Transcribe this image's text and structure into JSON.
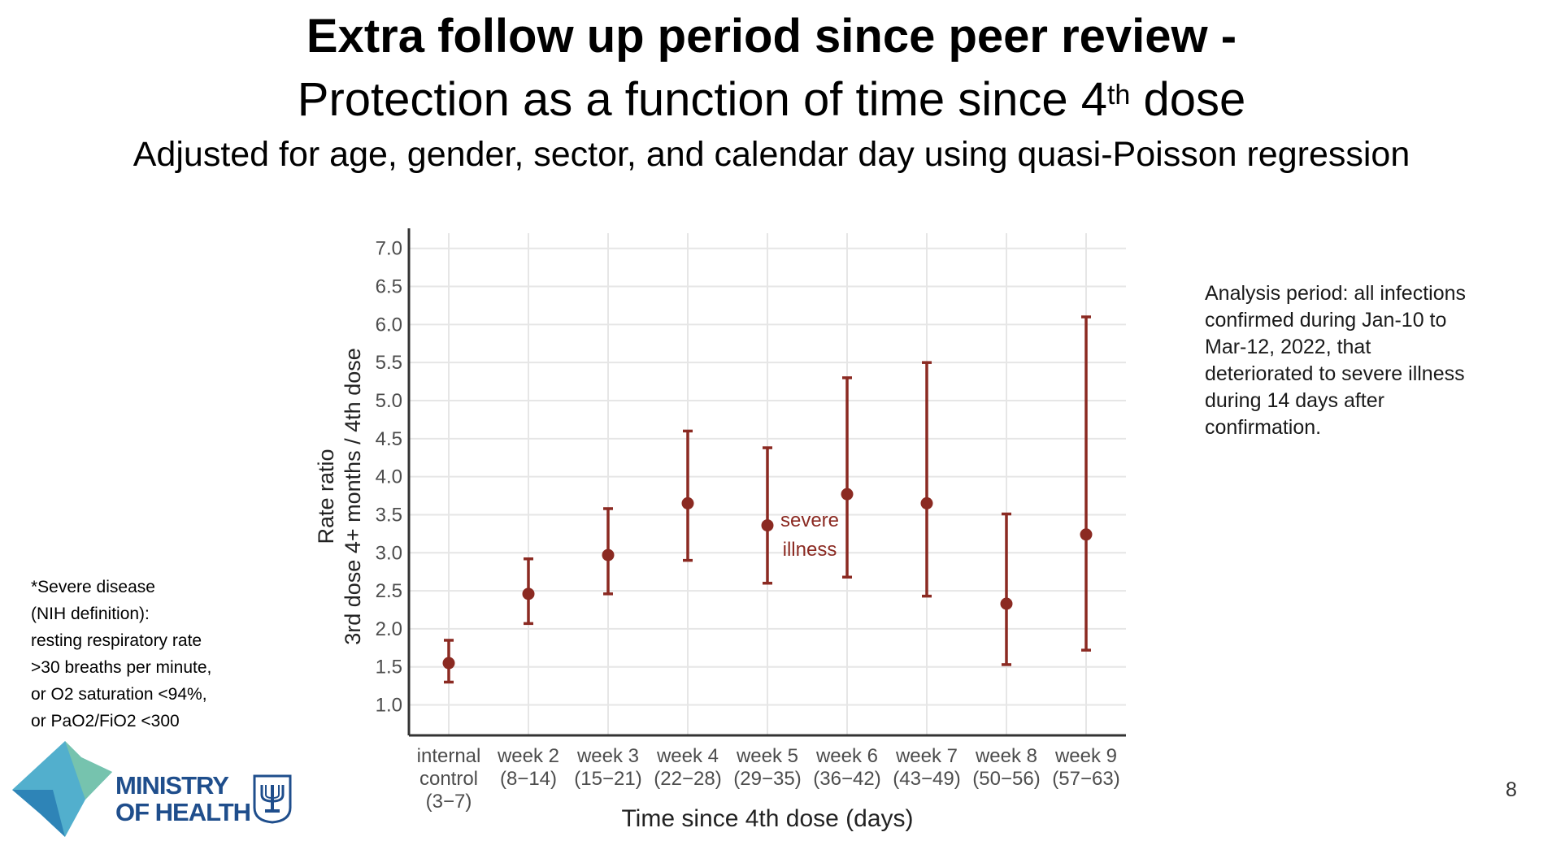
{
  "titles": {
    "line1": "Extra follow up period since peer review",
    "line1_dash": "-",
    "line2_prefix": "Protection as a function of time since 4",
    "line2_sup": "th",
    "line2_suffix": " dose",
    "line3": "Adjusted for age, gender, sector, and calendar day using quasi-Poisson regression"
  },
  "sidenote": [
    "Analysis period: all infections",
    "confirmed during Jan-10 to",
    "Mar-12, 2022, that",
    "deteriorated to severe illness",
    "during 14 days after",
    "confirmation."
  ],
  "footnote": [
    "*Severe disease",
    "(NIH definition):",
    "resting respiratory rate",
    ">30 breaths per minute,",
    "or O2 saturation <94%,",
    "or PaO2/FiO2  <300"
  ],
  "page_number": "8",
  "logo": {
    "line1": "MINISTRY",
    "line2": "OF HEALTH"
  },
  "colors": {
    "series": "#8b2a22",
    "grid": "#e6e6e6",
    "axis": "#333333",
    "tick_label": "#4d4d4d",
    "logo_text": "#1f4e8c"
  },
  "chart_data": {
    "type": "scatter",
    "xlabel": "Time since 4th dose (days)",
    "ylabel_lines": [
      "Rate ratio",
      "3rd dose 4+ months / 4th dose"
    ],
    "ylim": [
      0.6,
      7.2
    ],
    "yticks": [
      "1.0",
      "1.5",
      "2.0",
      "2.5",
      "3.0",
      "3.5",
      "4.0",
      "4.5",
      "5.0",
      "5.5",
      "6.0",
      "6.5",
      "7.0"
    ],
    "grid": true,
    "categories": [
      [
        "internal",
        "control",
        "(3−7)"
      ],
      [
        "week 2",
        "(8−14)"
      ],
      [
        "week 3",
        "(15−21)"
      ],
      [
        "week 4",
        "(22−28)"
      ],
      [
        "week 5",
        "(29−35)"
      ],
      [
        "week 6",
        "(36−42)"
      ],
      [
        "week 7",
        "(43−49)"
      ],
      [
        "week 8",
        "(50−56)"
      ],
      [
        "week 9",
        "(57−63)"
      ]
    ],
    "series": [
      {
        "name": "severe illness",
        "values": [
          1.55,
          2.46,
          2.97,
          3.65,
          3.36,
          3.77,
          3.65,
          2.33,
          3.24
        ],
        "lower": [
          1.3,
          2.07,
          2.46,
          2.9,
          2.6,
          2.68,
          2.43,
          1.53,
          1.72
        ],
        "upper": [
          1.85,
          2.92,
          3.58,
          4.6,
          4.38,
          5.3,
          5.5,
          3.51,
          6.1
        ]
      }
    ],
    "annotation_lines": [
      "severe",
      "illness"
    ]
  }
}
